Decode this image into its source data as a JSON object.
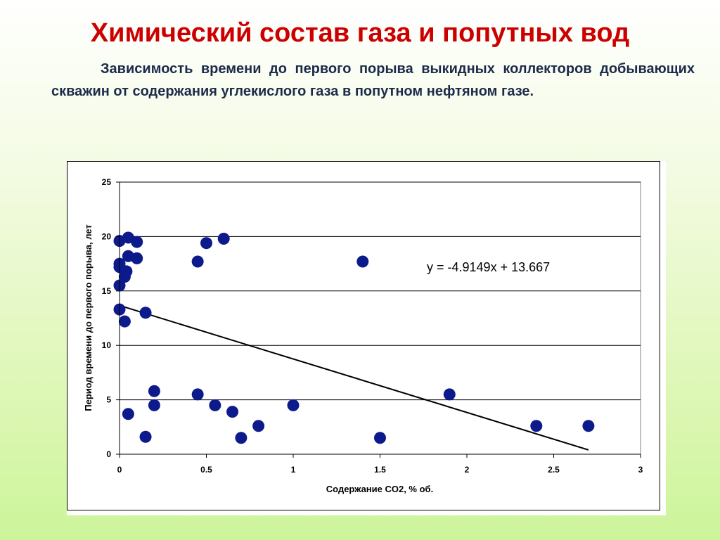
{
  "slide": {
    "title": "Химический состав газа и попутных вод",
    "subtitle": "Зависимость времени до первого порыва выкидных коллекторов добывающих скважин от содержания углекислого газа в попутном нефтяном газе."
  },
  "colors": {
    "title": "#cc0000",
    "subtitle": "#1c2b4a",
    "points": "#0d1a8c",
    "trendline": "#000000",
    "gridlines": "#000000"
  },
  "chart_data": {
    "type": "scatter",
    "title": "",
    "xlabel": "Содержание CO2, % об.",
    "ylabel": "Период времени до первого порыва, лет",
    "xlim": [
      0,
      3
    ],
    "ylim": [
      0,
      25
    ],
    "x_ticks": [
      "0",
      "0.5",
      "1",
      "1.5",
      "2",
      "2.5",
      "3"
    ],
    "y_ticks": [
      "0",
      "5",
      "10",
      "15",
      "20",
      "25"
    ],
    "grid": "horizontal",
    "points": [
      {
        "x": 0.0,
        "y": 19.6
      },
      {
        "x": 0.05,
        "y": 19.9
      },
      {
        "x": 0.1,
        "y": 19.5
      },
      {
        "x": 0.05,
        "y": 18.2
      },
      {
        "x": 0.1,
        "y": 18.0
      },
      {
        "x": 0.0,
        "y": 17.5
      },
      {
        "x": 0.0,
        "y": 17.2
      },
      {
        "x": 0.04,
        "y": 16.8
      },
      {
        "x": 0.03,
        "y": 16.3
      },
      {
        "x": 0.0,
        "y": 15.5
      },
      {
        "x": 0.0,
        "y": 13.3
      },
      {
        "x": 0.15,
        "y": 13.0
      },
      {
        "x": 0.03,
        "y": 12.2
      },
      {
        "x": 0.45,
        "y": 17.7
      },
      {
        "x": 0.5,
        "y": 19.4
      },
      {
        "x": 0.6,
        "y": 19.8
      },
      {
        "x": 1.4,
        "y": 17.7
      },
      {
        "x": 0.2,
        "y": 5.8
      },
      {
        "x": 0.2,
        "y": 4.5
      },
      {
        "x": 0.05,
        "y": 3.7
      },
      {
        "x": 0.15,
        "y": 1.6
      },
      {
        "x": 0.45,
        "y": 5.5
      },
      {
        "x": 0.55,
        "y": 4.5
      },
      {
        "x": 0.65,
        "y": 3.9
      },
      {
        "x": 0.7,
        "y": 1.5
      },
      {
        "x": 0.8,
        "y": 2.6
      },
      {
        "x": 1.0,
        "y": 4.5
      },
      {
        "x": 1.5,
        "y": 1.5
      },
      {
        "x": 1.9,
        "y": 5.5
      },
      {
        "x": 2.4,
        "y": 2.6
      },
      {
        "x": 2.7,
        "y": 2.6
      }
    ],
    "trendline": {
      "equation": "y = -4.9149x + 13.667",
      "slope": -4.9149,
      "intercept": 13.667,
      "x_range": [
        0,
        2.7
      ]
    }
  }
}
